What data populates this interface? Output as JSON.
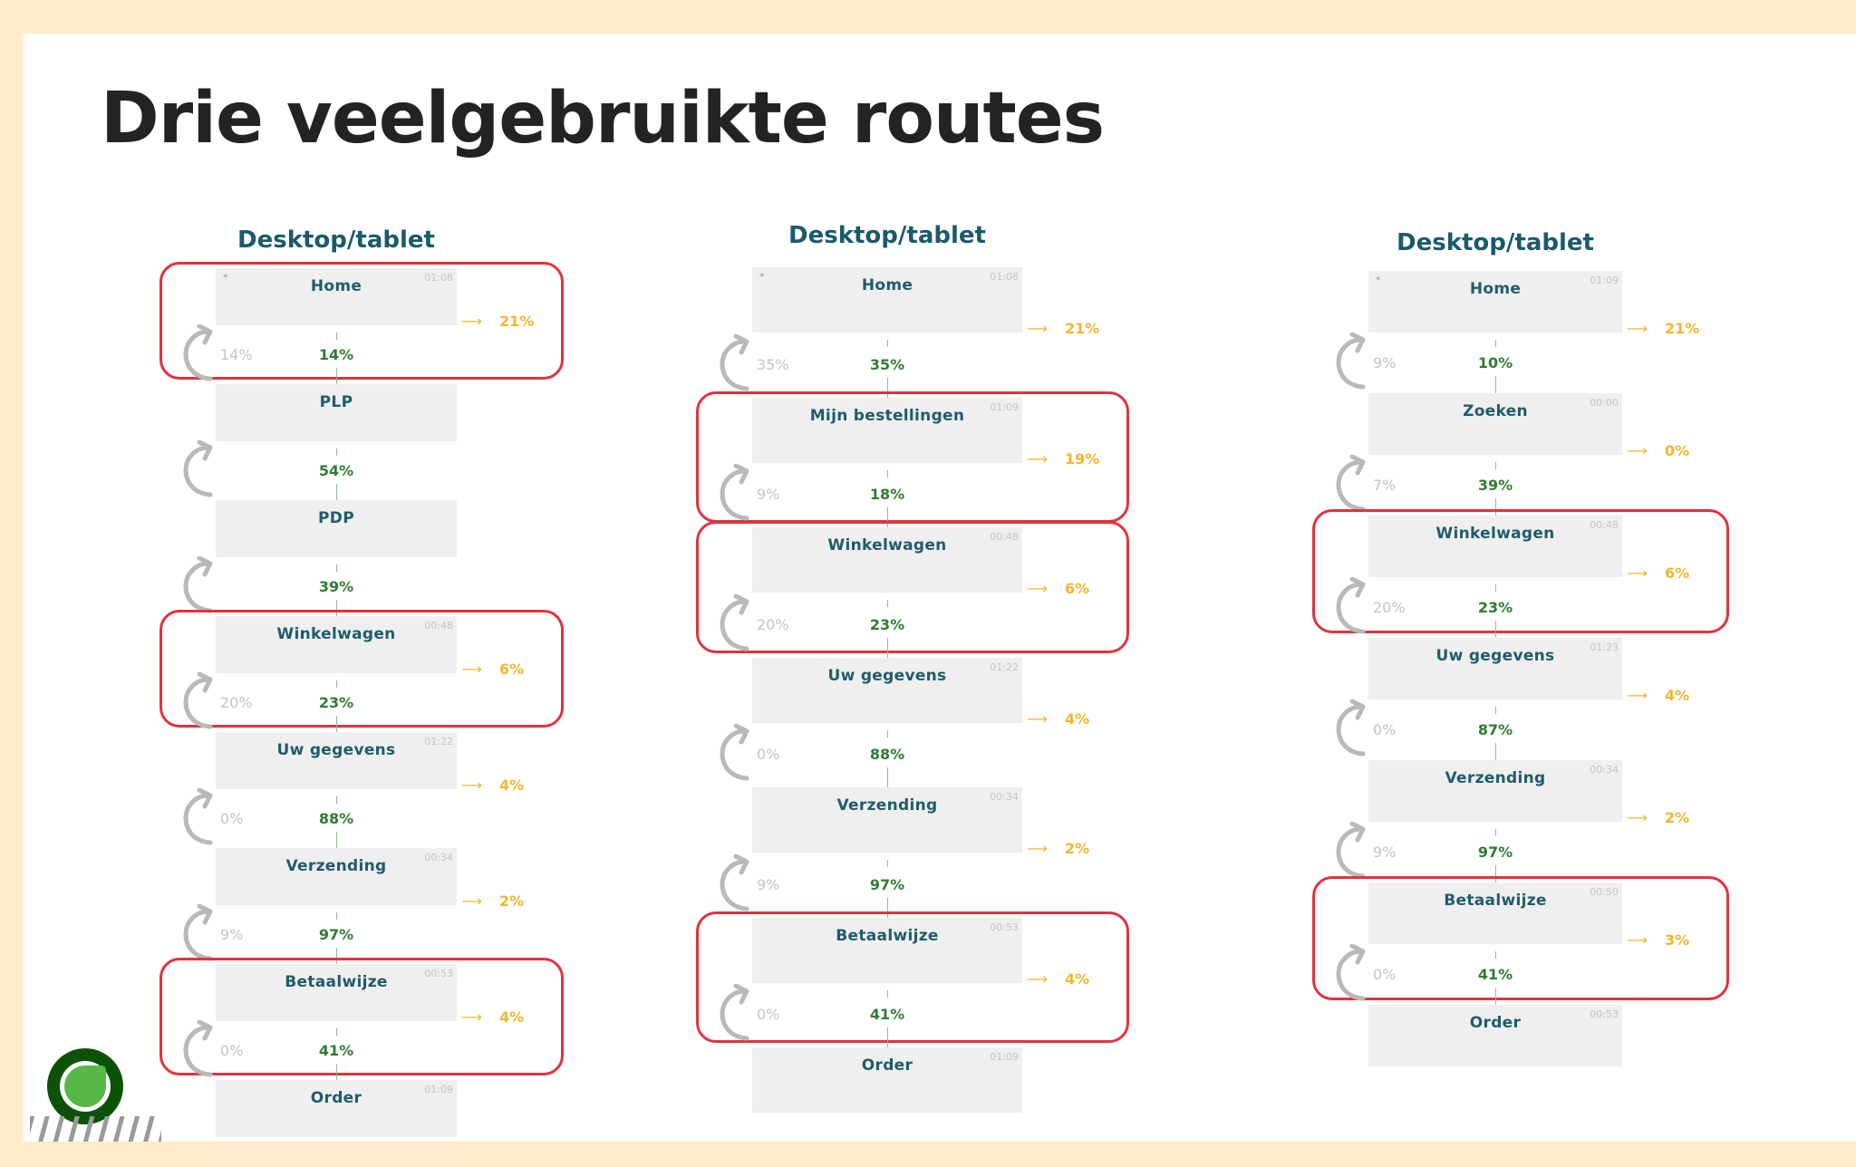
{
  "title": "Drie veelgebruikte routes",
  "colors": {
    "heading": "#1b5a6b",
    "forward": "#2e7d32",
    "exit": "#f5b52e",
    "loop": "#c4c4c4",
    "highlight": "#e0343f",
    "background": "#fdebc9"
  },
  "columns": [
    {
      "heading": "Desktop/tablet",
      "nodes": [
        {
          "name": "Home",
          "time": "01:08",
          "star": "*",
          "exit": "21%",
          "loop": "14%",
          "forward": "14%",
          "highlighted": true
        },
        {
          "name": "PLP",
          "forward": "54%",
          "loop_icon": true,
          "highlighted": false
        },
        {
          "name": "PDP",
          "forward": "39%",
          "loop_icon": true,
          "highlighted": false
        },
        {
          "name": "Winkelwagen",
          "time": "00:48",
          "exit": "6%",
          "loop": "20%",
          "forward": "23%",
          "highlighted": true
        },
        {
          "name": "Uw gegevens",
          "time": "01:22",
          "exit": "4%",
          "loop": "0%",
          "forward": "88%",
          "highlighted": false
        },
        {
          "name": "Verzending",
          "time": "00:34",
          "exit": "2%",
          "loop": "9%",
          "forward": "97%",
          "highlighted": false
        },
        {
          "name": "Betaalwijze",
          "time": "00:53",
          "exit": "4%",
          "loop": "0%",
          "forward": "41%",
          "highlighted": true
        },
        {
          "name": "Order",
          "time": "01:09",
          "highlighted": false
        }
      ]
    },
    {
      "heading": "Desktop/tablet",
      "nodes": [
        {
          "name": "Home",
          "time": "01:08",
          "star": "*",
          "exit": "21%",
          "loop": "35%",
          "forward": "35%",
          "highlighted": false
        },
        {
          "name": "Mijn bestellingen",
          "time": "01:09",
          "exit": "19%",
          "loop": "9%",
          "forward": "18%",
          "highlighted": true
        },
        {
          "name": "Winkelwagen",
          "time": "00:48",
          "exit": "6%",
          "loop": "20%",
          "forward": "23%",
          "highlighted": true
        },
        {
          "name": "Uw gegevens",
          "time": "01:22",
          "exit": "4%",
          "loop": "0%",
          "forward": "88%",
          "highlighted": false
        },
        {
          "name": "Verzending",
          "time": "00:34",
          "exit": "2%",
          "loop": "9%",
          "forward": "97%",
          "highlighted": false
        },
        {
          "name": "Betaalwijze",
          "time": "00:53",
          "exit": "4%",
          "loop": "0%",
          "forward": "41%",
          "highlighted": true
        },
        {
          "name": "Order",
          "time": "01:09",
          "highlighted": false
        }
      ]
    },
    {
      "heading": "Desktop/tablet",
      "nodes": [
        {
          "name": "Home",
          "time": "01:09",
          "star": "*",
          "exit": "21%",
          "loop": "9%",
          "forward": "10%",
          "highlighted": false
        },
        {
          "name": "Zoeken",
          "time": "00:00",
          "exit": "0%",
          "loop": "7%",
          "forward": "39%",
          "highlighted": false
        },
        {
          "name": "Winkelwagen",
          "time": "00:48",
          "exit": "6%",
          "loop": "20%",
          "forward": "23%",
          "highlighted": true
        },
        {
          "name": "Uw gegevens",
          "time": "01:23",
          "exit": "4%",
          "loop": "0%",
          "forward": "87%",
          "highlighted": false
        },
        {
          "name": "Verzending",
          "time": "00:34",
          "exit": "2%",
          "loop": "9%",
          "forward": "97%",
          "highlighted": false
        },
        {
          "name": "Betaalwijze",
          "time": "00:50",
          "exit": "3%",
          "loop": "0%",
          "forward": "41%",
          "highlighted": true
        },
        {
          "name": "Order",
          "time": "00:53",
          "highlighted": false
        }
      ]
    }
  ]
}
